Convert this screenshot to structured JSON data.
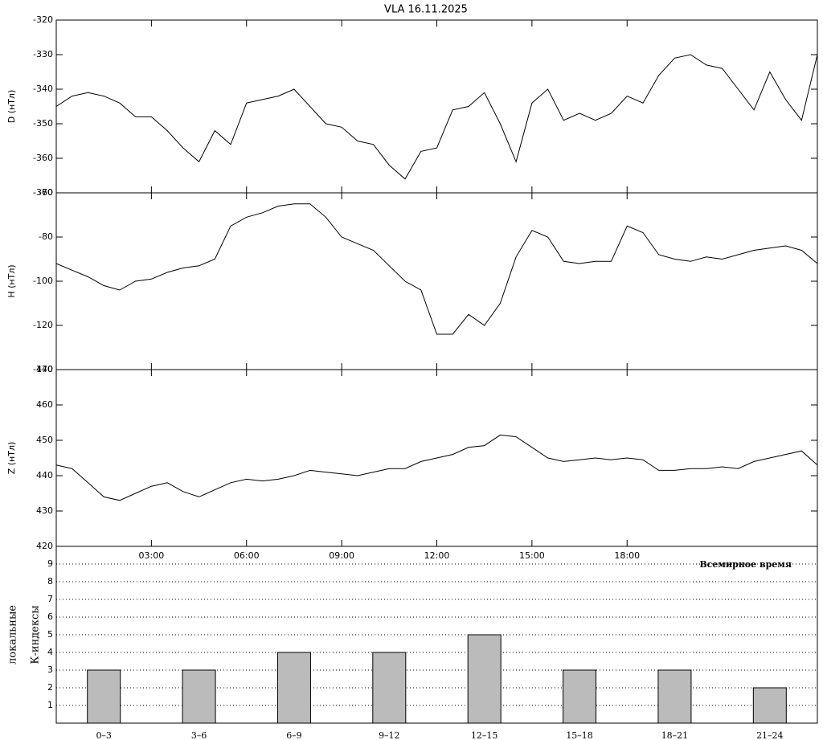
{
  "chart_data": [
    {
      "type": "line",
      "title": "VLA   16.11.2025",
      "ylabel": "D (нТл)",
      "x": [
        0,
        0.5,
        1,
        1.5,
        2,
        2.5,
        3,
        3.5,
        4,
        4.5,
        5,
        5.5,
        6,
        6.5,
        7,
        7.5,
        8,
        8.5,
        9,
        9.5,
        10,
        10.5,
        11,
        11.5,
        12,
        12.5,
        13,
        13.5,
        14,
        14.5,
        15,
        15.5,
        16,
        16.5,
        17,
        17.5,
        18,
        18.5,
        19,
        19.5,
        20,
        20.5,
        21,
        21.5,
        22,
        22.5,
        23,
        23.5,
        24
      ],
      "values": [
        -345,
        -342,
        -341,
        -342,
        -344,
        -348,
        -348,
        -352,
        -357,
        -361,
        -352,
        -356,
        -344,
        -343,
        -342,
        -340,
        -345,
        -350,
        -351,
        -355,
        -356,
        -362,
        -366,
        -358,
        -357,
        -346,
        -345,
        -341,
        -350,
        -361,
        -344,
        -340,
        -349,
        -347,
        -349,
        -347,
        -342,
        -344,
        -336,
        -331,
        -330,
        -333,
        -334,
        -340,
        -346,
        -335,
        -343,
        -349,
        -330
      ],
      "xlim": [
        0,
        24
      ],
      "ylim": [
        -370,
        -320
      ],
      "yticks": [
        -320,
        -330,
        -340,
        -350,
        -360,
        -370
      ],
      "color": "#000000"
    },
    {
      "type": "line",
      "ylabel": "H (нТл)",
      "x": [
        0,
        0.5,
        1,
        1.5,
        2,
        2.5,
        3,
        3.5,
        4,
        4.5,
        5,
        5.5,
        6,
        6.5,
        7,
        7.5,
        8,
        8.5,
        9,
        9.5,
        10,
        10.5,
        11,
        11.5,
        12,
        12.5,
        13,
        13.5,
        14,
        14.5,
        15,
        15.5,
        16,
        16.5,
        17,
        17.5,
        18,
        18.5,
        19,
        19.5,
        20,
        20.5,
        21,
        21.5,
        22,
        22.5,
        23,
        23.5,
        24
      ],
      "values": [
        -92,
        -95,
        -98,
        -102,
        -104,
        -100,
        -99,
        -96,
        -94,
        -93,
        -90,
        -75,
        -71,
        -69,
        -66,
        -65,
        -65,
        -71,
        -80,
        -83,
        -86,
        -93,
        -100,
        -104,
        -124,
        -124,
        -115,
        -120,
        -110,
        -89,
        -77,
        -80,
        -91,
        -92,
        -91,
        -91,
        -75,
        -78,
        -88,
        -90,
        -91,
        -89,
        -90,
        -88,
        -86,
        -85,
        -84,
        -86,
        -92
      ],
      "xlim": [
        0,
        24
      ],
      "ylim": [
        -140,
        -60
      ],
      "yticks": [
        -60,
        -80,
        -100,
        -120,
        -140
      ],
      "color": "#000000"
    },
    {
      "type": "line",
      "ylabel": "Z (нТл)",
      "xlabel": "Всемирное время",
      "x": [
        0,
        0.5,
        1,
        1.5,
        2,
        2.5,
        3,
        3.5,
        4,
        4.5,
        5,
        5.5,
        6,
        6.5,
        7,
        7.5,
        8,
        8.5,
        9,
        9.5,
        10,
        10.5,
        11,
        11.5,
        12,
        12.5,
        13,
        13.5,
        14,
        14.5,
        15,
        15.5,
        16,
        16.5,
        17,
        17.5,
        18,
        18.5,
        19,
        19.5,
        20,
        20.5,
        21,
        21.5,
        22,
        22.5,
        23,
        23.5,
        24
      ],
      "values": [
        443,
        442,
        438,
        434,
        433,
        435,
        437,
        438,
        435.5,
        434,
        436,
        438,
        439,
        438.5,
        439,
        440,
        441.5,
        441,
        440.5,
        440,
        441,
        442,
        442,
        444,
        445,
        446,
        448,
        448.5,
        451.5,
        451,
        448,
        445,
        444,
        444.5,
        445,
        444.5,
        445,
        444.5,
        441.5,
        441.5,
        442,
        442,
        442.5,
        442,
        444,
        445,
        446,
        447,
        443
      ],
      "xlim": [
        0,
        24
      ],
      "ylim": [
        420,
        470
      ],
      "yticks": [
        470,
        460,
        450,
        440,
        430,
        420
      ],
      "xticks": [
        {
          "value": 3,
          "label": "03:00"
        },
        {
          "value": 6,
          "label": "06:00"
        },
        {
          "value": 9,
          "label": "09:00"
        },
        {
          "value": 12,
          "label": "12:00"
        },
        {
          "value": 15,
          "label": "15:00"
        },
        {
          "value": 18,
          "label": "18:00"
        }
      ],
      "color": "#000000"
    },
    {
      "type": "bar",
      "ylabel": [
        "локальные",
        "К-индексы"
      ],
      "categories": [
        "0–3",
        "3–6",
        "6–9",
        "9–12",
        "12–15",
        "15–18",
        "18–21",
        "21–24"
      ],
      "values": [
        3,
        3,
        4,
        4,
        5,
        3,
        3,
        2
      ],
      "ylim": [
        0,
        10
      ],
      "yticks": [
        1,
        2,
        3,
        4,
        5,
        6,
        7,
        8,
        9
      ],
      "grid": true,
      "color": "#bbbbbb"
    }
  ]
}
